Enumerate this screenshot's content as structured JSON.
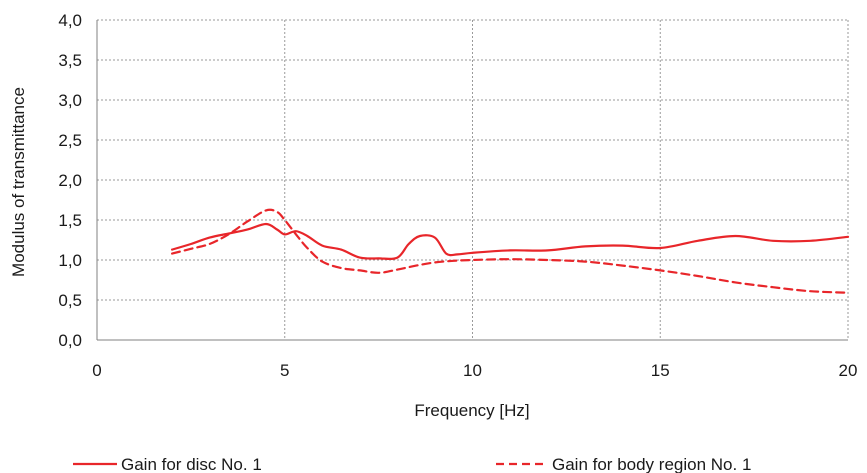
{
  "chart_data": {
    "type": "line",
    "xlabel": "Frequency [Hz]",
    "ylabel": "Modulus of transmittance",
    "xlim": [
      0,
      20
    ],
    "ylim": [
      0,
      4
    ],
    "x_ticks": [
      0,
      5,
      10,
      15,
      20
    ],
    "x_tick_labels": [
      "0",
      "5",
      "10",
      "15",
      "20"
    ],
    "y_ticks": [
      0,
      0.5,
      1,
      1.5,
      2,
      2.5,
      3,
      3.5,
      4
    ],
    "y_tick_labels": [
      "0,0",
      "0,5",
      "1,0",
      "1,5",
      "2,0",
      "2,5",
      "3,0",
      "3,5",
      "4,0"
    ],
    "grid": true,
    "legend_position": "bottom",
    "series_color": "#e8262a",
    "series": [
      {
        "name": "Gain for disc No. 1",
        "style": "solid",
        "x": [
          2,
          2.5,
          3,
          3.5,
          4,
          4.5,
          4.8,
          5,
          5.3,
          5.6,
          6,
          6.5,
          7,
          7.5,
          8,
          8.3,
          8.6,
          9,
          9.3,
          9.6,
          10,
          11,
          12,
          13,
          14,
          15,
          16,
          17,
          18,
          19,
          20
        ],
        "y": [
          1.13,
          1.2,
          1.28,
          1.33,
          1.38,
          1.45,
          1.38,
          1.32,
          1.36,
          1.3,
          1.18,
          1.13,
          1.03,
          1.02,
          1.03,
          1.2,
          1.3,
          1.28,
          1.08,
          1.07,
          1.09,
          1.12,
          1.12,
          1.17,
          1.18,
          1.15,
          1.24,
          1.3,
          1.24,
          1.24,
          1.29
        ]
      },
      {
        "name": "Gain for body region No. 1",
        "style": "dashed",
        "x": [
          2,
          2.5,
          3,
          3.5,
          4,
          4.5,
          4.8,
          5,
          5.3,
          5.6,
          6,
          6.5,
          7,
          7.5,
          8,
          8.5,
          9,
          9.5,
          10,
          11,
          12,
          13,
          14,
          15,
          16,
          17,
          18,
          19,
          20
        ],
        "y": [
          1.08,
          1.14,
          1.2,
          1.32,
          1.48,
          1.62,
          1.6,
          1.5,
          1.32,
          1.15,
          0.98,
          0.9,
          0.87,
          0.84,
          0.88,
          0.93,
          0.97,
          0.99,
          1.0,
          1.01,
          1.0,
          0.98,
          0.93,
          0.87,
          0.8,
          0.72,
          0.66,
          0.61,
          0.59
        ]
      }
    ]
  }
}
